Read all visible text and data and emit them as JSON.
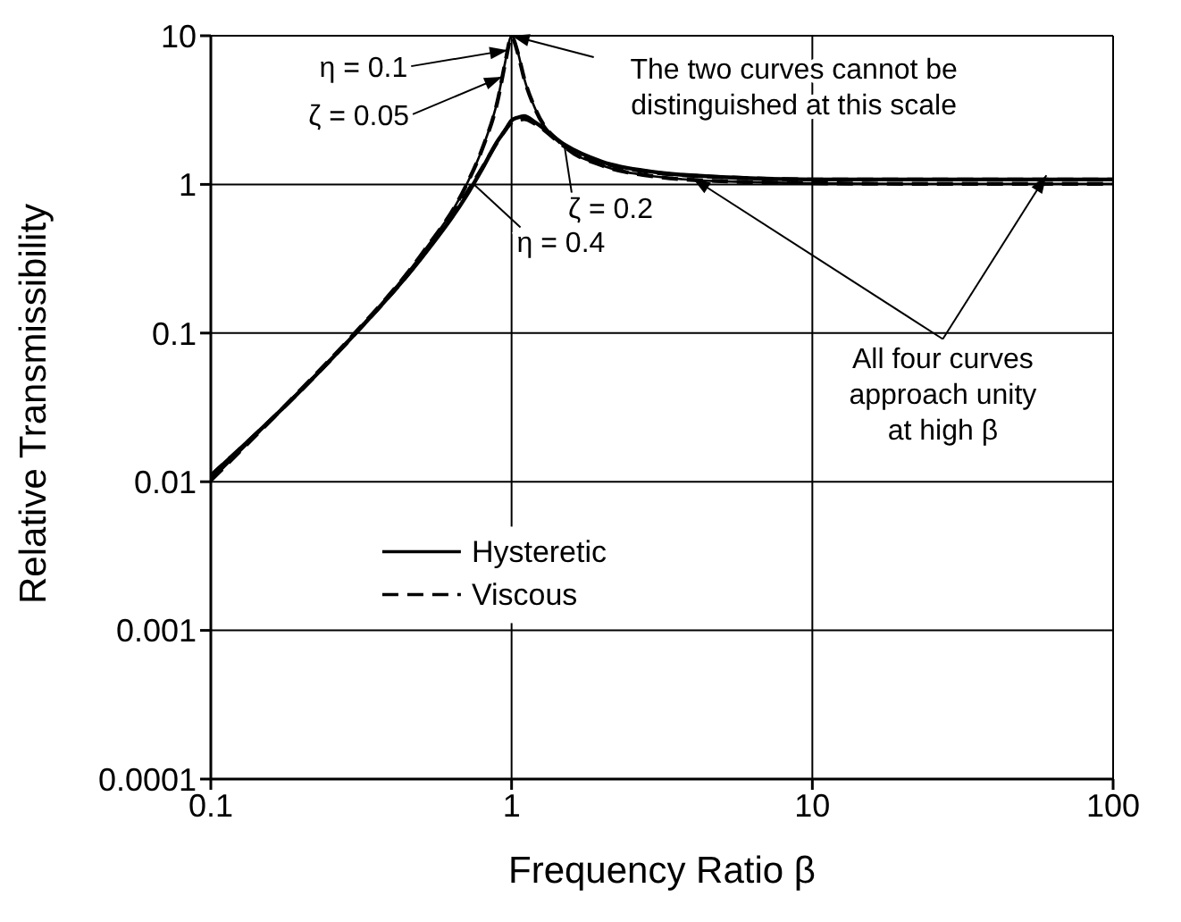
{
  "chart_data": {
    "type": "line",
    "xlabel": "Frequency Ratio  β",
    "ylabel": "Relative Transmissibility",
    "log": "xy",
    "xlim": [
      0.1,
      100
    ],
    "ylim": [
      0.0001,
      10
    ],
    "xticks": [
      0.1,
      1,
      10,
      100
    ],
    "yticks": [
      0.0001,
      0.001,
      0.01,
      0.1,
      1,
      10
    ],
    "grid": true,
    "legend": "center",
    "x": [
      0.1,
      0.2,
      0.3,
      0.5,
      0.7,
      0.8,
      0.9,
      0.95,
      1,
      1.05,
      1.1,
      1.2,
      1.5,
      2,
      3,
      5,
      10,
      20,
      50,
      100
    ],
    "series": [
      {
        "name": "Hysteretic",
        "color": "#000000",
        "line_style": "solid",
        "values": [
          0.0102,
          0.042,
          0.099,
          0.335,
          0.95,
          1.75,
          3.75,
          6.5,
          10,
          7.7,
          5.2,
          3.2,
          1.8,
          1.34,
          1.13,
          1.05,
          1.02,
          1.01,
          1.01,
          1.01
        ]
      },
      {
        "name": "Viscous",
        "color": "#000000",
        "line_style": "dashed",
        "values": [
          0.0102,
          0.042,
          0.099,
          0.335,
          0.95,
          1.75,
          3.7,
          6.4,
          9.8,
          7.6,
          5.2,
          3.2,
          1.8,
          1.34,
          1.13,
          1.05,
          1.02,
          1.01,
          1.01,
          1.01
        ]
      },
      {
        "color": "#000000",
        "line_style": "solid",
        "values": [
          0.011,
          0.0414,
          0.0975,
          0.317,
          0.81,
          1.28,
          1.97,
          2.3,
          2.69,
          2.82,
          2.88,
          2.61,
          1.85,
          1.42,
          1.21,
          1.12,
          1.08,
          1.08,
          1.08,
          1.08
        ]
      },
      {
        "color": "#000000",
        "line_style": "dashed",
        "values": [
          0.011,
          0.0414,
          0.0975,
          0.32,
          0.84,
          1.3,
          1.95,
          2.3,
          2.6,
          2.7,
          2.75,
          2.55,
          1.8,
          1.4,
          1.2,
          1.12,
          1.08,
          1.08,
          1.08,
          1.08
        ]
      }
    ],
    "annotations": [
      {
        "text": "η = 0.1",
        "x": 0.97,
        "y": 8
      },
      {
        "text": "ζ = 0.05",
        "x": 0.93,
        "y": 5.3
      },
      {
        "text": "ζ = 0.2",
        "x": 1.5,
        "y": 1.8
      },
      {
        "text": "η = 0.4",
        "x": 0.75,
        "y": 1
      },
      {
        "text": "The two curves cannot be distinguished at this scale",
        "x": 1,
        "y": 10
      },
      {
        "text": "All four curves approach unity at high β",
        "x": 4,
        "y": 1.1
      }
    ]
  }
}
